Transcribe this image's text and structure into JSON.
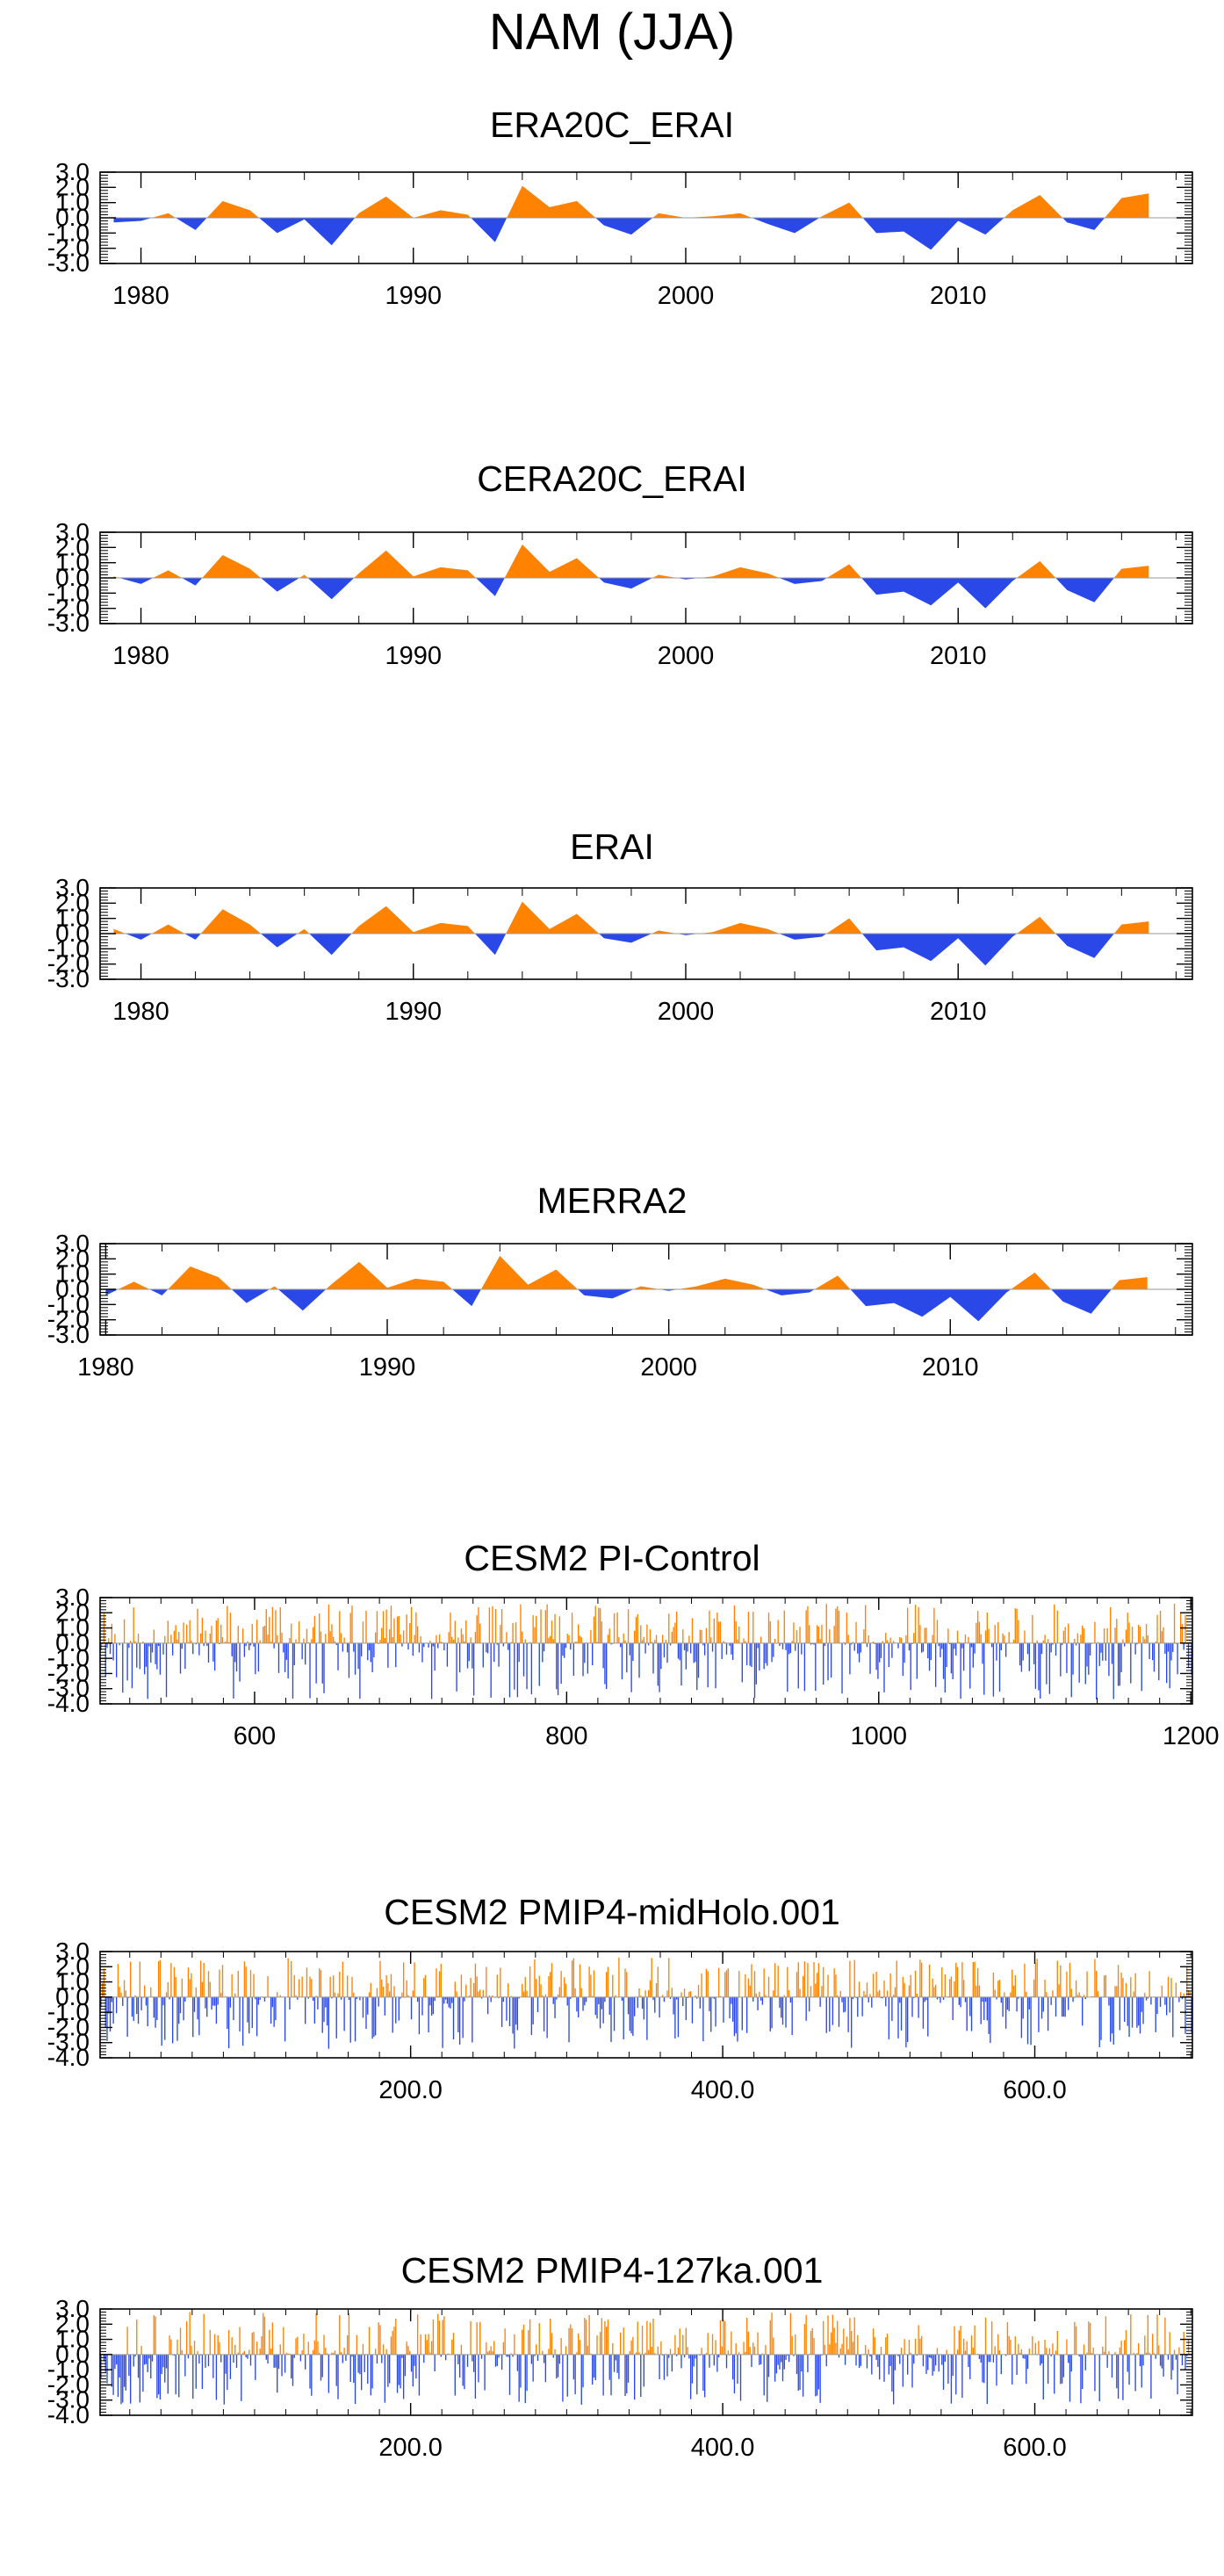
{
  "figure": {
    "title": "NAM (JJA)",
    "positive_color": "#ff8200",
    "negative_color": "#2a48e8"
  },
  "chart_data": [
    {
      "type": "area",
      "title": "ERA20C_ERAI",
      "x": [
        1979,
        1980,
        1981,
        1982,
        1983,
        1984,
        1985,
        1986,
        1987,
        1988,
        1989,
        1990,
        1991,
        1992,
        1993,
        1994,
        1995,
        1996,
        1997,
        1998,
        1999,
        2000,
        2001,
        2002,
        2003,
        2004,
        2005,
        2006,
        2007,
        2008,
        2009,
        2010,
        2011,
        2012,
        2013,
        2014,
        2015,
        2016,
        2017
      ],
      "values": [
        -0.3,
        -0.2,
        0.3,
        -0.8,
        1.1,
        0.5,
        -1.0,
        -0.1,
        -1.8,
        0.3,
        1.4,
        0.0,
        0.5,
        0.2,
        -1.6,
        2.1,
        0.7,
        1.1,
        -0.5,
        -1.1,
        0.3,
        0.0,
        0.1,
        0.3,
        -0.4,
        -1.0,
        0.1,
        1.0,
        -1.0,
        -0.9,
        -2.1,
        -0.2,
        -1.1,
        0.5,
        1.5,
        -0.3,
        -0.8,
        1.3,
        1.6
      ],
      "xlim": [
        1978.5,
        2018.6
      ],
      "ylim": [
        -3.0,
        3.0
      ],
      "xticks": [
        1980,
        1990,
        2000,
        2010
      ],
      "xtick_labels": [
        "1980",
        "1990",
        "2000",
        "2010"
      ],
      "yticks": [
        -3.0,
        -2.0,
        -1.0,
        0.0,
        1.0,
        2.0,
        3.0
      ],
      "ytick_labels": [
        "-3.0",
        "-2.0",
        "-1.0",
        "0.0",
        "1.0",
        "2.0",
        "3.0"
      ]
    },
    {
      "type": "area",
      "title": "CERA20C_ERAI",
      "x": [
        1979,
        1980,
        1981,
        1982,
        1983,
        1984,
        1985,
        1986,
        1987,
        1988,
        1989,
        1990,
        1991,
        1992,
        1993,
        1994,
        1995,
        1996,
        1997,
        1998,
        1999,
        2000,
        2001,
        2002,
        2003,
        2004,
        2005,
        2006,
        2007,
        2008,
        2009,
        2010,
        2011,
        2012,
        2013,
        2014,
        2015,
        2016,
        2017
      ],
      "values": [
        0.1,
        -0.4,
        0.5,
        -0.5,
        1.5,
        0.6,
        -0.9,
        0.2,
        -1.4,
        0.3,
        1.8,
        0.1,
        0.7,
        0.5,
        -1.2,
        2.2,
        0.4,
        1.3,
        -0.3,
        -0.7,
        0.2,
        -0.1,
        0.1,
        0.7,
        0.3,
        -0.4,
        -0.2,
        0.9,
        -1.1,
        -0.9,
        -1.8,
        -0.3,
        -2.0,
        -0.2,
        1.1,
        -0.8,
        -1.6,
        0.6,
        0.8
      ],
      "xlim": [
        1978.5,
        2018.6
      ],
      "ylim": [
        -3.0,
        3.0
      ],
      "xticks": [
        1980,
        1990,
        2000,
        2010
      ],
      "xtick_labels": [
        "1980",
        "1990",
        "2000",
        "2010"
      ],
      "yticks": [
        -3.0,
        -2.0,
        -1.0,
        0.0,
        1.0,
        2.0,
        3.0
      ],
      "ytick_labels": [
        "-3.0",
        "-2.0",
        "-1.0",
        "0.0",
        "1.0",
        "2.0",
        "3.0"
      ]
    },
    {
      "type": "area",
      "title": "ERAI",
      "x": [
        1979,
        1980,
        1981,
        1982,
        1983,
        1984,
        1985,
        1986,
        1987,
        1988,
        1989,
        1990,
        1991,
        1992,
        1993,
        1994,
        1995,
        1996,
        1997,
        1998,
        1999,
        2000,
        2001,
        2002,
        2003,
        2004,
        2005,
        2006,
        2007,
        2008,
        2009,
        2010,
        2011,
        2012,
        2013,
        2014,
        2015,
        2016,
        2017
      ],
      "values": [
        0.3,
        -0.4,
        0.6,
        -0.4,
        1.6,
        0.6,
        -0.9,
        0.3,
        -1.4,
        0.5,
        1.8,
        0.1,
        0.7,
        0.5,
        -1.4,
        2.1,
        0.3,
        1.3,
        -0.3,
        -0.6,
        0.2,
        -0.1,
        0.1,
        0.7,
        0.3,
        -0.4,
        -0.2,
        1.0,
        -1.1,
        -0.9,
        -1.8,
        -0.3,
        -2.1,
        -0.2,
        1.1,
        -0.8,
        -1.6,
        0.6,
        0.8
      ],
      "xlim": [
        1978.5,
        2018.6
      ],
      "ylim": [
        -3.0,
        3.0
      ],
      "xticks": [
        1980,
        1990,
        2000,
        2010
      ],
      "xtick_labels": [
        "1980",
        "1990",
        "2000",
        "2010"
      ],
      "yticks": [
        -3.0,
        -2.0,
        -1.0,
        0.0,
        1.0,
        2.0,
        3.0
      ],
      "ytick_labels": [
        "-3.0",
        "-2.0",
        "-1.0",
        "0.0",
        "1.0",
        "2.0",
        "3.0"
      ]
    },
    {
      "type": "area",
      "title": "MERRA2",
      "x": [
        1980,
        1981,
        1982,
        1983,
        1984,
        1985,
        1986,
        1987,
        1988,
        1989,
        1990,
        1991,
        1992,
        1993,
        1994,
        1995,
        1996,
        1997,
        1998,
        1999,
        2000,
        2001,
        2002,
        2003,
        2004,
        2005,
        2006,
        2007,
        2008,
        2009,
        2010,
        2011,
        2012,
        2013,
        2014,
        2015,
        2016,
        2017
      ],
      "values": [
        -0.4,
        0.5,
        -0.4,
        1.5,
        0.8,
        -0.9,
        0.2,
        -1.4,
        0.3,
        1.8,
        0.1,
        0.7,
        0.5,
        -1.1,
        2.2,
        0.3,
        1.3,
        -0.4,
        -0.6,
        0.2,
        -0.1,
        0.2,
        0.7,
        0.3,
        -0.4,
        -0.2,
        0.9,
        -1.1,
        -0.9,
        -1.8,
        -0.5,
        -2.1,
        -0.2,
        1.1,
        -0.8,
        -1.6,
        0.6,
        0.8
      ],
      "xlim": [
        1979.8,
        2018.6
      ],
      "ylim": [
        -3.0,
        3.0
      ],
      "xticks": [
        1980,
        1990,
        2000,
        2010
      ],
      "xtick_labels": [
        "1980",
        "1990",
        "2000",
        "2010"
      ],
      "yticks": [
        -3.0,
        -2.0,
        -1.0,
        0.0,
        1.0,
        2.0,
        3.0
      ],
      "ytick_labels": [
        "-3.0",
        "-2.0",
        "-1.0",
        "0.0",
        "1.0",
        "2.0",
        "3.0"
      ]
    },
    {
      "type": "bar",
      "title": "CESM2 PI-Control",
      "series_length": 700,
      "x_start": 501,
      "xlim": [
        501,
        1201
      ],
      "ylim": [
        -4.0,
        3.0
      ],
      "xticks": [
        600,
        800,
        1000,
        1200
      ],
      "xtick_labels": [
        "600",
        "800",
        "1000",
        "1200"
      ],
      "yticks": [
        -4.0,
        -3.0,
        -2.0,
        -1.0,
        0.0,
        1.0,
        2.0,
        3.0
      ],
      "ytick_labels": [
        "-4.0",
        "-3.0",
        "-2.0",
        "-1.0",
        "0.0",
        "1.0",
        "2.0",
        "3.0"
      ],
      "seed": 11,
      "min_value": -3.7,
      "max_value": 2.6
    },
    {
      "type": "bar",
      "title": "CESM2 PMIP4-midHolo.001",
      "series_length": 700,
      "x_start": 1,
      "xlim": [
        1,
        701
      ],
      "ylim": [
        -4.0,
        3.0
      ],
      "xticks": [
        200,
        400,
        600
      ],
      "xtick_labels": [
        "200.0",
        "400.0",
        "600.0"
      ],
      "yticks": [
        -4.0,
        -3.0,
        -2.0,
        -1.0,
        0.0,
        1.0,
        2.0,
        3.0
      ],
      "ytick_labels": [
        "-4.0",
        "-3.0",
        "-2.0",
        "-1.0",
        "0.0",
        "1.0",
        "2.0",
        "3.0"
      ],
      "seed": 23,
      "min_value": -3.4,
      "max_value": 2.6
    },
    {
      "type": "bar",
      "title": "CESM2 PMIP4-127ka.001",
      "series_length": 700,
      "x_start": 1,
      "xlim": [
        1,
        701
      ],
      "ylim": [
        -4.0,
        3.0
      ],
      "xticks": [
        200,
        400,
        600
      ],
      "xtick_labels": [
        "200.0",
        "400.0",
        "600.0"
      ],
      "yticks": [
        -4.0,
        -3.0,
        -2.0,
        -1.0,
        0.0,
        1.0,
        2.0,
        3.0
      ],
      "ytick_labels": [
        "-4.0",
        "-3.0",
        "-2.0",
        "-1.0",
        "0.0",
        "1.0",
        "2.0",
        "3.0"
      ],
      "seed": 37,
      "min_value": -3.3,
      "max_value": 2.8
    }
  ]
}
